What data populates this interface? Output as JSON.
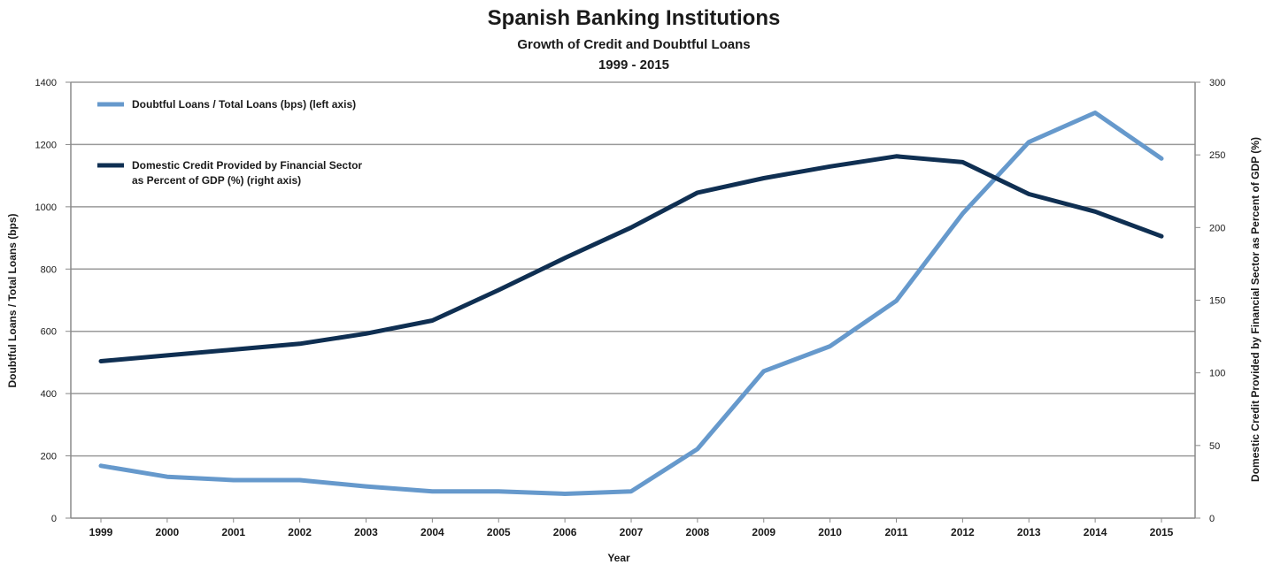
{
  "chart_data": {
    "type": "line",
    "title": "Spanish Banking Institutions",
    "subtitle": "Growth of Credit and Doubtful Loans",
    "subtitle2": "1999 - 2015",
    "xlabel": "Year",
    "ylabel_left": "Doubtful Loans / Total Loans (bps)",
    "ylabel_right": "Domestic Credit Provided by Financial Sector as Percent of GDP (%)",
    "categories": [
      "1999",
      "2000",
      "2001",
      "2002",
      "2003",
      "2004",
      "2005",
      "2006",
      "2007",
      "2008",
      "2009",
      "2010",
      "2011",
      "2012",
      "2013",
      "2014",
      "2015"
    ],
    "ylim_left": [
      0,
      1400
    ],
    "ylim_right": [
      0,
      300
    ],
    "yticks_left": [
      "0",
      "200",
      "400",
      "600",
      "800",
      "1000",
      "1200",
      "1400"
    ],
    "yticks_right": [
      "0",
      "50",
      "100",
      "150",
      "200",
      "250",
      "300"
    ],
    "grid": true,
    "legend_position": "top-left",
    "series": [
      {
        "name": "Doubtful Loans / Total Loans (bps) (left axis)",
        "axis": "left",
        "color": "#6699cc",
        "values": [
          168,
          133,
          122,
          122,
          102,
          86,
          86,
          78,
          86,
          222,
          472,
          552,
          698,
          978,
          1208,
          1302,
          1155
        ]
      },
      {
        "name_lines": [
          "Domestic Credit Provided by Financial Sector",
          "as Percent of GDP (%) (right axis)"
        ],
        "axis": "right",
        "color": "#0f2f52",
        "values": [
          108,
          112,
          116,
          120,
          127,
          136,
          157,
          179,
          200,
          224,
          234,
          242,
          249,
          245,
          223,
          211,
          194
        ]
      }
    ]
  }
}
